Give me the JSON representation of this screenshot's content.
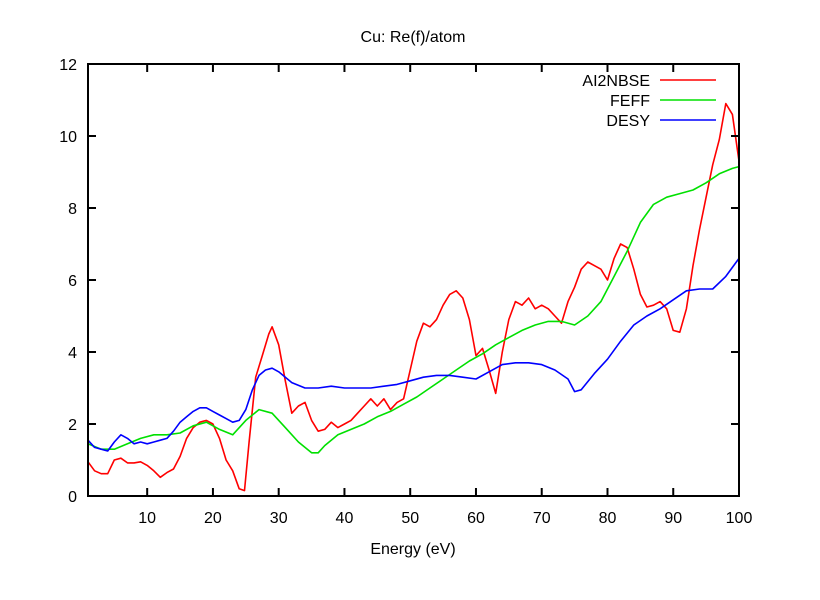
{
  "chart_data": {
    "type": "line",
    "title": "Cu: Re(f)/atom",
    "xlabel": "Energy (eV)",
    "ylabel": "",
    "xlim": [
      1,
      100
    ],
    "ylim": [
      0,
      12
    ],
    "xticks": [
      10,
      20,
      30,
      40,
      50,
      60,
      70,
      80,
      90,
      100
    ],
    "xtick_labels": [
      "10",
      "20",
      "30",
      "40",
      "50",
      "60",
      "70",
      "80",
      "90",
      "100"
    ],
    "yticks": [
      0,
      2,
      4,
      6,
      8,
      10,
      12
    ],
    "ytick_labels": [
      "0",
      "2",
      "4",
      "6",
      "8",
      "10",
      "12"
    ],
    "grid": false,
    "legend_position": "top-right",
    "series": [
      {
        "name": "AI2NBSE",
        "color": "#ff0000",
        "x": [
          1,
          2,
          3,
          4,
          5,
          6,
          7,
          8,
          9,
          10,
          11,
          12,
          13,
          14,
          15,
          16,
          17,
          18,
          19,
          20,
          21,
          22,
          23,
          24,
          24.8,
          25.5,
          26.5,
          27.5,
          28.5,
          29,
          30,
          31,
          32,
          33,
          34,
          35,
          36,
          37,
          38,
          39,
          40,
          41,
          42,
          43,
          44,
          45,
          46,
          47,
          48,
          49,
          50,
          51,
          52,
          53,
          54,
          55,
          56,
          57,
          58,
          59,
          60,
          61,
          62,
          63,
          64,
          65,
          66,
          67,
          68,
          69,
          70,
          71,
          72,
          73,
          74,
          75,
          76,
          77,
          78,
          79,
          80,
          81,
          82,
          83,
          84,
          85,
          86,
          87,
          88,
          89,
          90,
          91,
          92,
          93,
          94,
          95,
          96,
          97,
          98,
          99,
          100
        ],
        "values": [
          0.95,
          0.7,
          0.62,
          0.62,
          1.0,
          1.05,
          0.92,
          0.92,
          0.95,
          0.85,
          0.7,
          0.52,
          0.65,
          0.75,
          1.1,
          1.6,
          1.9,
          2.05,
          2.1,
          2.0,
          1.6,
          1.0,
          0.7,
          0.2,
          0.15,
          1.5,
          3.3,
          3.9,
          4.5,
          4.7,
          4.2,
          3.2,
          2.3,
          2.5,
          2.6,
          2.1,
          1.8,
          1.85,
          2.05,
          1.9,
          2.0,
          2.1,
          2.3,
          2.5,
          2.7,
          2.5,
          2.7,
          2.4,
          2.6,
          2.7,
          3.5,
          4.3,
          4.8,
          4.7,
          4.9,
          5.3,
          5.6,
          5.7,
          5.5,
          4.9,
          3.9,
          4.1,
          3.5,
          2.85,
          4.0,
          4.9,
          5.4,
          5.3,
          5.5,
          5.2,
          5.3,
          5.2,
          5.0,
          4.8,
          5.4,
          5.8,
          6.3,
          6.5,
          6.4,
          6.3,
          6.0,
          6.6,
          7.0,
          6.9,
          6.3,
          5.6,
          5.25,
          5.3,
          5.4,
          5.2,
          4.6,
          4.55,
          5.2,
          6.4,
          7.4,
          8.3,
          9.2,
          9.9,
          10.9,
          10.6,
          9.3
        ]
      },
      {
        "name": "FEFF",
        "color": "#00e000",
        "x": [
          1,
          3,
          5,
          7,
          9,
          11,
          13,
          15,
          17,
          19,
          21,
          23,
          25,
          27,
          29,
          31,
          33,
          35,
          36,
          37,
          39,
          41,
          43,
          45,
          47,
          49,
          51,
          53,
          55,
          57,
          59,
          61,
          63,
          65,
          67,
          69,
          71,
          73,
          75,
          77,
          79,
          81,
          83,
          85,
          87,
          89,
          91,
          93,
          95,
          97,
          99,
          100
        ],
        "values": [
          1.45,
          1.3,
          1.3,
          1.45,
          1.6,
          1.7,
          1.7,
          1.75,
          1.95,
          2.05,
          1.85,
          1.7,
          2.1,
          2.4,
          2.3,
          1.9,
          1.5,
          1.2,
          1.2,
          1.4,
          1.7,
          1.85,
          2.0,
          2.2,
          2.35,
          2.55,
          2.75,
          3.0,
          3.25,
          3.5,
          3.75,
          3.95,
          4.2,
          4.4,
          4.6,
          4.75,
          4.85,
          4.85,
          4.75,
          5.0,
          5.4,
          6.1,
          6.8,
          7.6,
          8.1,
          8.3,
          8.4,
          8.5,
          8.7,
          8.95,
          9.1,
          9.15
        ]
      },
      {
        "name": "DESY",
        "color": "#0000ff",
        "x": [
          1,
          2,
          3,
          4,
          5,
          6,
          7,
          8,
          9,
          10,
          11,
          12,
          13,
          14,
          15,
          16,
          17,
          18,
          19,
          20,
          21,
          22,
          23,
          24,
          25,
          26,
          27,
          28,
          29,
          30,
          32,
          34,
          36,
          38,
          40,
          42,
          44,
          46,
          48,
          50,
          52,
          54,
          56,
          58,
          60,
          62,
          64,
          66,
          68,
          70,
          72,
          74,
          75,
          76,
          78,
          80,
          82,
          84,
          86,
          88,
          90,
          92,
          94,
          96,
          98,
          100
        ],
        "values": [
          1.55,
          1.35,
          1.3,
          1.25,
          1.5,
          1.7,
          1.6,
          1.45,
          1.5,
          1.45,
          1.5,
          1.55,
          1.6,
          1.8,
          2.05,
          2.2,
          2.35,
          2.45,
          2.45,
          2.35,
          2.25,
          2.15,
          2.05,
          2.1,
          2.4,
          2.95,
          3.35,
          3.5,
          3.55,
          3.45,
          3.15,
          3.0,
          3.0,
          3.05,
          3.0,
          3.0,
          3.0,
          3.05,
          3.1,
          3.2,
          3.3,
          3.35,
          3.35,
          3.3,
          3.25,
          3.45,
          3.65,
          3.7,
          3.7,
          3.65,
          3.5,
          3.25,
          2.9,
          2.95,
          3.4,
          3.8,
          4.3,
          4.75,
          5.0,
          5.2,
          5.45,
          5.7,
          5.75,
          5.75,
          6.1,
          6.6
        ]
      }
    ]
  }
}
